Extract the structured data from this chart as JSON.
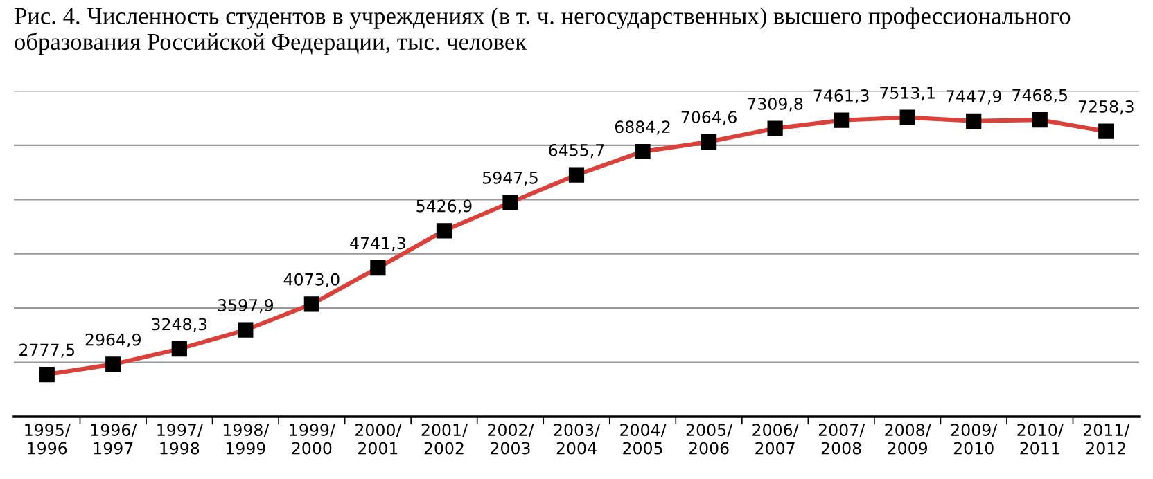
{
  "chart_data": {
    "type": "line",
    "title": "Рис. 4. Численность студентов в учреждениях (в т. ч. негосударственных) высшего профессионального образования Российской Федерации, тыс. человек",
    "categories": [
      "1995/\n1996",
      "1996/\n1997",
      "1997/\n1998",
      "1998/\n1999",
      "1999/\n2000",
      "2000/\n2001",
      "2001/\n2002",
      "2002/\n2003",
      "2003/\n2004",
      "2004/\n2005",
      "2005/\n2006",
      "2006/\n2007",
      "2007/\n2008",
      "2008/\n2009",
      "2009/\n2010",
      "2010/\n2011",
      "2011/\n2012"
    ],
    "series": [
      {
        "color": "#d9413a",
        "values": [
          2777.5,
          2964.9,
          3248.3,
          3597.9,
          4073.0,
          4741.3,
          5426.9,
          5947.5,
          6455.7,
          6884.2,
          7064.6,
          7309.8,
          7461.3,
          7513.1,
          7447.9,
          7468.5,
          7258.3
        ],
        "value_labels": [
          "2777,5",
          "2964,9",
          "3248,3",
          "3597,9",
          "4073,0",
          "4741,3",
          "5426,9",
          "5947,5",
          "6455,7",
          "6884,2",
          "7064,6",
          "7309,8",
          "7461,3",
          "7513,1",
          "7447,9",
          "7468,5",
          "7258,3"
        ]
      }
    ],
    "ylim": [
      2000,
      8000
    ],
    "yticks": [
      {
        "value": 3000,
        "label": null
      },
      {
        "value": 4000,
        "label": null
      },
      {
        "value": 5000,
        "label": null
      },
      {
        "value": 6000,
        "label": null
      },
      {
        "value": 7000,
        "label": null
      },
      {
        "value": 8000,
        "label": null
      }
    ],
    "tick_labels": "x",
    "grid": "y",
    "marker": "square",
    "line_style": "solid",
    "legend": false
  }
}
